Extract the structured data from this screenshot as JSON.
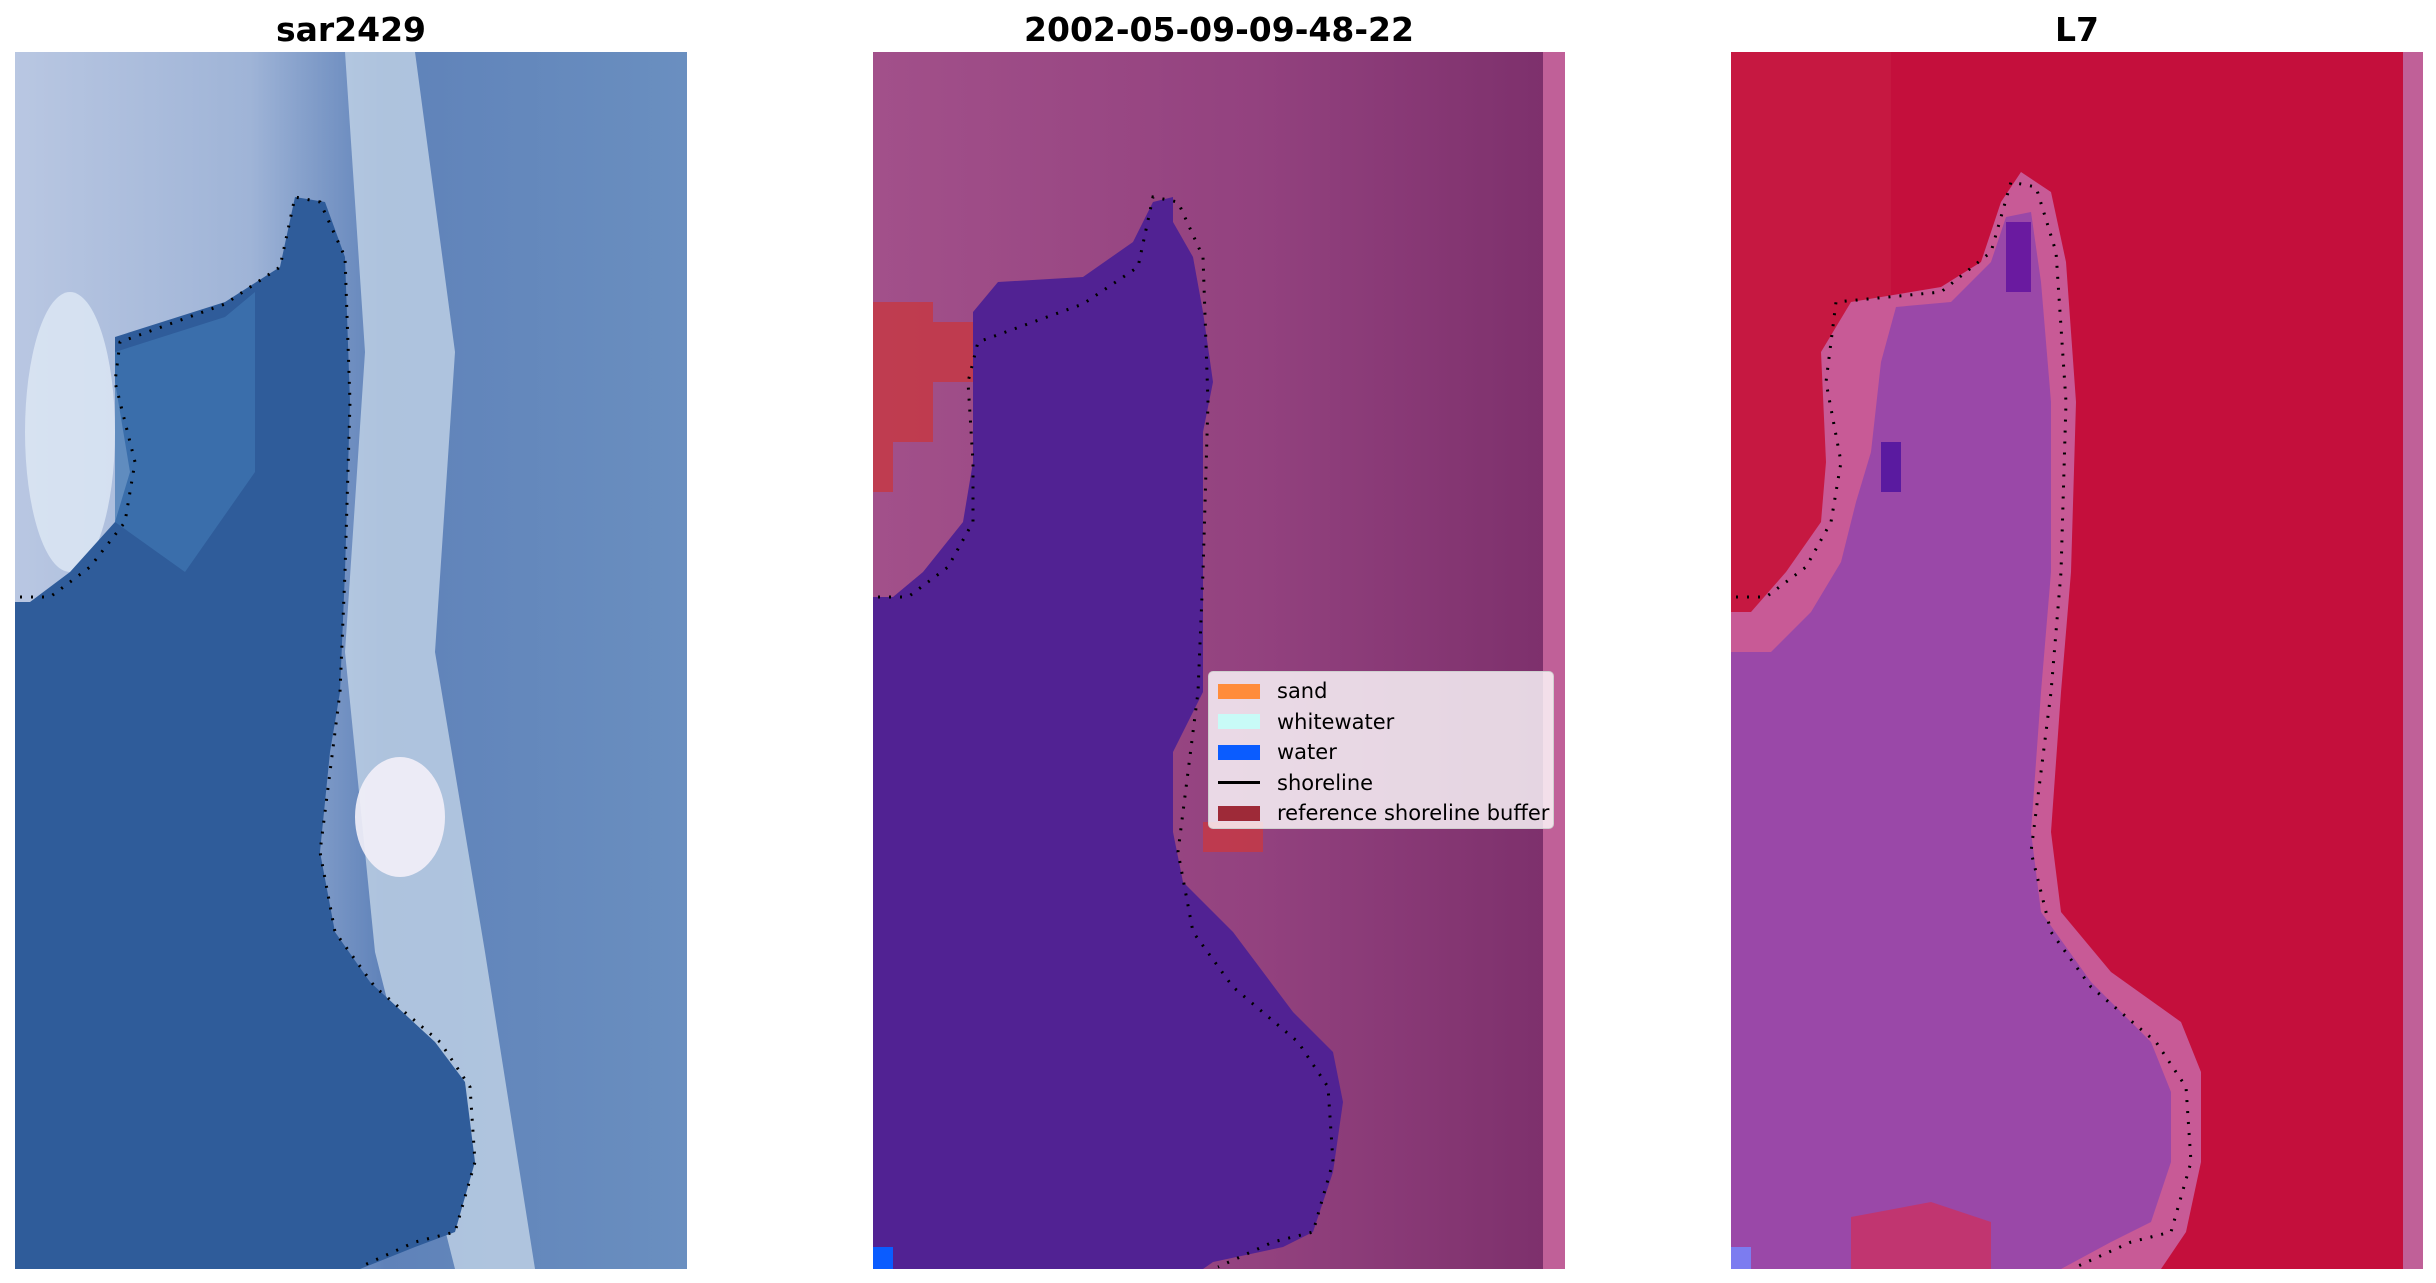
{
  "panels": [
    {
      "title": "sar2429",
      "kind": "rgb"
    },
    {
      "title": "2002-05-09-09-48-22",
      "kind": "classified"
    },
    {
      "title": "L7",
      "kind": "index"
    }
  ],
  "legend": {
    "items": [
      {
        "label": "sand",
        "type": "patch",
        "color": "#ff8c3a"
      },
      {
        "label": "whitewater",
        "type": "patch",
        "color": "#c8fbf7"
      },
      {
        "label": "water",
        "type": "patch",
        "color": "#0a5cff"
      },
      {
        "label": "shoreline",
        "type": "line",
        "color": "#000000"
      },
      {
        "label": "reference shoreline buffer",
        "type": "patch",
        "color": "#9e2a38"
      }
    ]
  },
  "colors": {
    "water_blue": "#2f5c9a",
    "wash_light": "#b8c8e3",
    "classified_water": "#512293",
    "classified_land": "#8f3978",
    "buffer_red": "#c23a49",
    "index_red": "#c20d3c",
    "index_purple": "#9a48a8"
  }
}
